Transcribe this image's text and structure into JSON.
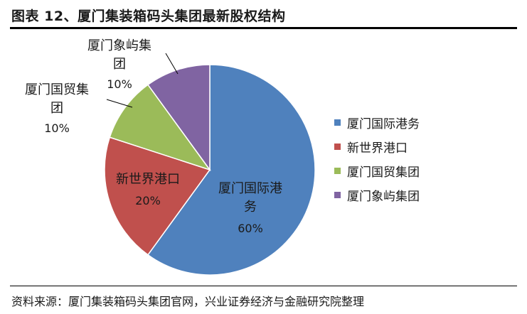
{
  "header": {
    "title": "图表 12、厦门集装箱码头集团最新股权结构"
  },
  "footer": {
    "source": "资料来源：厦门集装箱码头集团官网，兴业证券经济与金融研究院整理"
  },
  "chart_data": {
    "type": "pie",
    "title": "",
    "legend_position": "right",
    "slices": [
      {
        "name": "厦门国际港务",
        "value": 60,
        "percent_label": "60%",
        "color": "#4f81bd",
        "label_lines": [
          "厦门国际港",
          "务"
        ]
      },
      {
        "name": "新世界港口",
        "value": 20,
        "percent_label": "20%",
        "color": "#c0504d",
        "label_lines": [
          "新世界港口"
        ]
      },
      {
        "name": "厦门国贸集团",
        "value": 10,
        "percent_label": "10%",
        "color": "#9bbb59",
        "label_lines": [
          "厦门国贸集",
          "团"
        ]
      },
      {
        "name": "厦门象屿集团",
        "value": 10,
        "percent_label": "10%",
        "color": "#8064a2",
        "label_lines": [
          "厦门象屿集",
          "团"
        ]
      }
    ]
  }
}
